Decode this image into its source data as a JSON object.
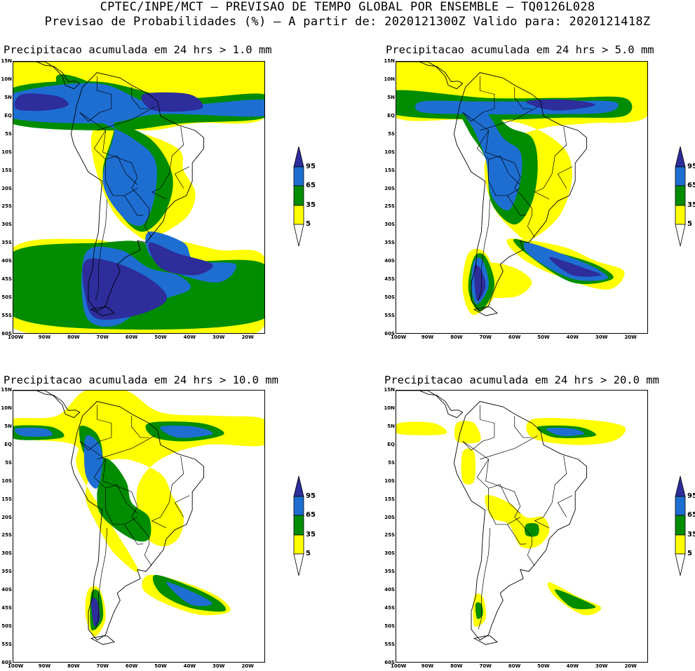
{
  "header": {
    "line1": "CPTEC/INPE/MCT – PREVISAO DE TEMPO GLOBAL POR ENSEMBLE – TQ0126L028",
    "line2": "Previsao de Probabilidades (%) –  A partir de: 2020121300Z  Valido para: 2020121418Z"
  },
  "panels": [
    {
      "title": "Precipitacao acumulada em 24 hrs > 1.0 mm"
    },
    {
      "title": "Precipitacao acumulada em 24 hrs > 5.0 mm"
    },
    {
      "title": "Precipitacao acumulada em 24 hrs > 10.0 mm"
    },
    {
      "title": "Precipitacao acumulada em 24 hrs > 20.0 mm"
    }
  ],
  "axes": {
    "lat_labels": [
      "15N",
      "10N",
      "5N",
      "EQ",
      "5S",
      "10S",
      "15S",
      "20S",
      "25S",
      "30S",
      "35S",
      "40S",
      "45S",
      "50S",
      "55S",
      "60S"
    ],
    "lon_labels": [
      "100W",
      "90W",
      "80W",
      "70W",
      "60W",
      "50W",
      "40W",
      "30W",
      "20W"
    ]
  },
  "legend": {
    "levels": [
      "95",
      "65",
      "35",
      "5"
    ],
    "colors": {
      "yellow": "#ffff00",
      "green": "#008c00",
      "blue": "#1e6ed2",
      "navy": "#2d2d9b"
    }
  }
}
